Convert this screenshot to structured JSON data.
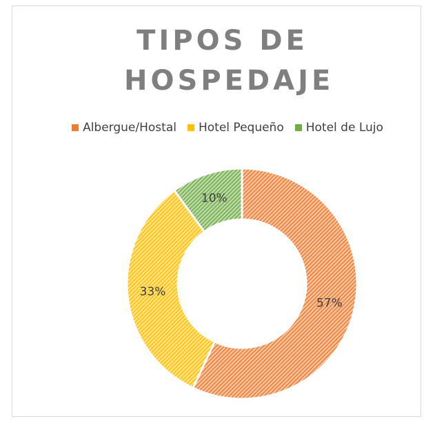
{
  "chart_data": {
    "type": "donut",
    "title": "TIPOS DE HOSPEDAJE",
    "categories": [
      "Albergue/Hostal",
      "Hotel Pequeño",
      "Hotel de Lujo"
    ],
    "values": [
      57,
      33,
      10
    ],
    "value_labels": [
      "57%",
      "33%",
      "10%"
    ],
    "colors": [
      "#ed7d31",
      "#ffc000",
      "#70ad47"
    ],
    "legend": "top"
  }
}
